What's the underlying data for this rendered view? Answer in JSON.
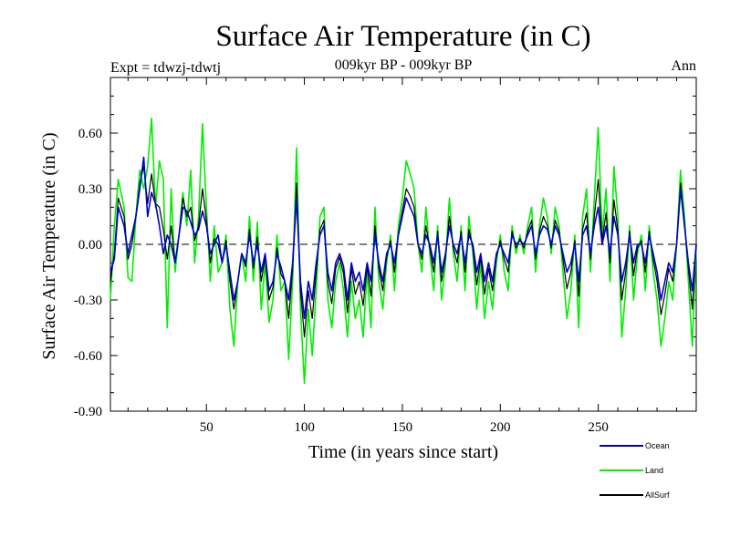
{
  "chart_data": {
    "type": "line",
    "title": "Surface Air Temperature (in C)",
    "subtitle": "009kyr BP - 009kyr BP",
    "left_label": "Expt = tdwzj-tdwtj",
    "right_label": "Ann",
    "xlabel": "Time (in years since start)",
    "ylabel": "Surface Air Temperature (in C)",
    "xlim": [
      1,
      300
    ],
    "ylim": [
      -0.9,
      0.9
    ],
    "x_ticks": [
      50,
      100,
      150,
      200,
      250
    ],
    "x_tick_labels": [
      "50",
      "100",
      "150",
      "200",
      "250"
    ],
    "y_ticks": [
      -0.9,
      -0.6,
      -0.3,
      0.0,
      0.3,
      0.6
    ],
    "y_tick_labels": [
      "-0.90",
      "-0.60",
      "-0.30",
      "0.00",
      "0.30",
      "0.60"
    ],
    "zero_line": "dashed",
    "grid": false,
    "legend_position": "bottom-right",
    "colors": {
      "Ocean": "#0000cc",
      "Land": "#00ee00",
      "AllSurf": "#000000"
    },
    "x": [
      1,
      3,
      5,
      8,
      10,
      12,
      14,
      16,
      18,
      20,
      22,
      24,
      26,
      28,
      30,
      32,
      34,
      36,
      38,
      40,
      42,
      44,
      46,
      48,
      50,
      52,
      54,
      56,
      58,
      60,
      62,
      64,
      66,
      68,
      70,
      72,
      74,
      76,
      78,
      80,
      82,
      84,
      86,
      88,
      90,
      92,
      94,
      96,
      98,
      100,
      102,
      104,
      106,
      108,
      110,
      112,
      114,
      116,
      118,
      120,
      122,
      124,
      126,
      128,
      130,
      132,
      134,
      136,
      138,
      140,
      142,
      144,
      146,
      148,
      150,
      152,
      154,
      156,
      158,
      160,
      162,
      164,
      166,
      168,
      170,
      172,
      174,
      176,
      178,
      180,
      182,
      184,
      186,
      188,
      190,
      192,
      194,
      196,
      198,
      200,
      202,
      204,
      206,
      208,
      210,
      212,
      214,
      216,
      218,
      220,
      222,
      224,
      226,
      228,
      230,
      232,
      234,
      236,
      238,
      240,
      242,
      244,
      246,
      248,
      250,
      252,
      254,
      256,
      258,
      260,
      262,
      264,
      266,
      268,
      270,
      272,
      274,
      276,
      278,
      280,
      282,
      284,
      286,
      288,
      290,
      292,
      294,
      296,
      298,
      300
    ],
    "series": [
      {
        "name": "Ocean",
        "values": [
          -0.15,
          -0.08,
          0.2,
          0.1,
          -0.05,
          0.05,
          0.15,
          0.3,
          0.47,
          0.15,
          0.28,
          0.22,
          0.1,
          -0.05,
          0.05,
          0.0,
          -0.1,
          0.05,
          0.2,
          0.18,
          0.12,
          0.05,
          0.08,
          0.18,
          0.1,
          -0.05,
          0.0,
          0.05,
          -0.1,
          0.0,
          -0.15,
          -0.3,
          -0.2,
          -0.05,
          -0.1,
          0.05,
          -0.1,
          0.0,
          -0.15,
          -0.05,
          -0.25,
          -0.2,
          -0.05,
          -0.12,
          -0.2,
          -0.3,
          -0.1,
          0.25,
          -0.2,
          -0.4,
          -0.2,
          -0.3,
          -0.1,
          0.05,
          0.1,
          -0.15,
          -0.25,
          -0.1,
          -0.05,
          -0.12,
          -0.3,
          -0.1,
          -0.2,
          -0.15,
          -0.25,
          -0.1,
          -0.2,
          0.05,
          -0.1,
          -0.2,
          -0.05,
          0.0,
          -0.1,
          0.05,
          0.15,
          0.25,
          0.2,
          0.15,
          0.0,
          -0.05,
          0.05,
          0.0,
          -0.1,
          0.05,
          -0.15,
          -0.05,
          0.1,
          0.0,
          -0.05,
          0.05,
          -0.1,
          0.05,
          0.0,
          -0.15,
          -0.05,
          -0.2,
          -0.1,
          -0.2,
          -0.05,
          0.0,
          -0.05,
          -0.1,
          0.05,
          0.0,
          0.02,
          0.0,
          0.05,
          0.1,
          -0.05,
          0.05,
          0.1,
          0.08,
          0.0,
          0.1,
          0.05,
          -0.05,
          -0.15,
          -0.1,
          0.0,
          -0.2,
          0.05,
          0.1,
          -0.05,
          0.1,
          0.2,
          0.0,
          0.1,
          -0.05,
          0.15,
          0.05,
          -0.2,
          -0.1,
          0.05,
          -0.1,
          0.0,
          0.0,
          -0.1,
          0.05,
          -0.05,
          -0.15,
          -0.3,
          -0.2,
          -0.1,
          -0.15,
          0.0,
          0.3,
          0.1,
          -0.1,
          -0.25,
          0.0
        ]
      },
      {
        "name": "Land",
        "values": [
          -0.3,
          0.1,
          0.35,
          0.2,
          -0.18,
          -0.2,
          0.15,
          0.4,
          0.3,
          0.42,
          0.68,
          0.2,
          0.45,
          0.35,
          -0.45,
          0.3,
          -0.15,
          0.05,
          0.28,
          0.1,
          0.4,
          -0.1,
          0.15,
          0.65,
          0.2,
          -0.2,
          0.1,
          -0.15,
          -0.1,
          0.05,
          -0.35,
          -0.55,
          -0.2,
          -0.05,
          -0.2,
          0.15,
          -0.2,
          0.12,
          -0.35,
          -0.1,
          -0.42,
          -0.3,
          0.05,
          -0.25,
          -0.2,
          -0.62,
          -0.2,
          0.52,
          -0.35,
          -0.75,
          -0.35,
          -0.6,
          -0.25,
          0.15,
          0.2,
          -0.3,
          -0.45,
          -0.2,
          -0.1,
          -0.25,
          -0.5,
          -0.2,
          -0.4,
          -0.3,
          -0.5,
          -0.15,
          -0.45,
          0.2,
          -0.2,
          -0.35,
          -0.1,
          0.05,
          -0.25,
          0.1,
          0.25,
          0.45,
          0.38,
          0.3,
          0.0,
          -0.15,
          0.2,
          -0.05,
          -0.25,
          0.1,
          -0.3,
          -0.1,
          0.25,
          -0.05,
          -0.2,
          0.1,
          -0.25,
          0.15,
          -0.05,
          -0.35,
          -0.1,
          -0.4,
          -0.2,
          -0.35,
          -0.1,
          0.05,
          -0.15,
          -0.25,
          0.1,
          -0.05,
          0.05,
          -0.05,
          0.1,
          0.2,
          -0.15,
          0.1,
          0.25,
          0.15,
          -0.05,
          0.2,
          0.1,
          -0.15,
          -0.4,
          -0.25,
          0.05,
          -0.45,
          0.15,
          0.3,
          -0.15,
          0.25,
          0.63,
          0.05,
          0.3,
          -0.2,
          0.42,
          0.15,
          -0.5,
          -0.25,
          0.1,
          -0.3,
          -0.05,
          0.05,
          -0.25,
          0.1,
          -0.15,
          -0.3,
          -0.55,
          -0.4,
          -0.2,
          -0.3,
          0.0,
          0.4,
          0.15,
          -0.2,
          -0.55,
          0.0
        ]
      },
      {
        "name": "AllSurf",
        "values": [
          -0.2,
          -0.05,
          0.25,
          0.15,
          -0.08,
          0.0,
          0.15,
          0.33,
          0.42,
          0.22,
          0.38,
          0.22,
          0.2,
          0.08,
          -0.08,
          0.1,
          -0.1,
          0.05,
          0.25,
          0.15,
          0.2,
          0.02,
          0.1,
          0.3,
          0.13,
          -0.1,
          0.03,
          0.0,
          -0.1,
          0.02,
          -0.2,
          -0.35,
          -0.2,
          -0.05,
          -0.12,
          0.08,
          -0.13,
          0.04,
          -0.2,
          -0.07,
          -0.3,
          -0.23,
          -0.02,
          -0.16,
          -0.2,
          -0.4,
          -0.13,
          0.33,
          -0.25,
          -0.5,
          -0.25,
          -0.4,
          -0.15,
          0.08,
          0.13,
          -0.2,
          -0.32,
          -0.13,
          -0.07,
          -0.16,
          -0.37,
          -0.13,
          -0.27,
          -0.2,
          -0.33,
          -0.12,
          -0.28,
          0.1,
          -0.13,
          -0.25,
          -0.07,
          0.02,
          -0.15,
          0.06,
          0.18,
          0.3,
          0.26,
          0.2,
          0.0,
          -0.08,
          0.1,
          -0.02,
          -0.15,
          0.07,
          -0.2,
          -0.07,
          0.15,
          -0.02,
          -0.1,
          0.07,
          -0.15,
          0.08,
          -0.02,
          -0.22,
          -0.07,
          -0.27,
          -0.13,
          -0.25,
          -0.07,
          0.02,
          -0.08,
          -0.15,
          0.07,
          -0.02,
          0.03,
          -0.02,
          0.07,
          0.13,
          -0.08,
          0.07,
          0.15,
          0.1,
          -0.02,
          0.13,
          0.07,
          -0.08,
          -0.24,
          -0.15,
          0.02,
          -0.28,
          0.08,
          0.17,
          -0.08,
          0.15,
          0.35,
          0.02,
          0.17,
          -0.1,
          0.24,
          0.08,
          -0.3,
          -0.15,
          0.07,
          -0.17,
          -0.02,
          0.02,
          -0.15,
          0.07,
          -0.08,
          -0.2,
          -0.38,
          -0.27,
          -0.13,
          -0.2,
          0.0,
          0.33,
          0.12,
          -0.13,
          -0.35,
          0.0
        ]
      }
    ]
  }
}
